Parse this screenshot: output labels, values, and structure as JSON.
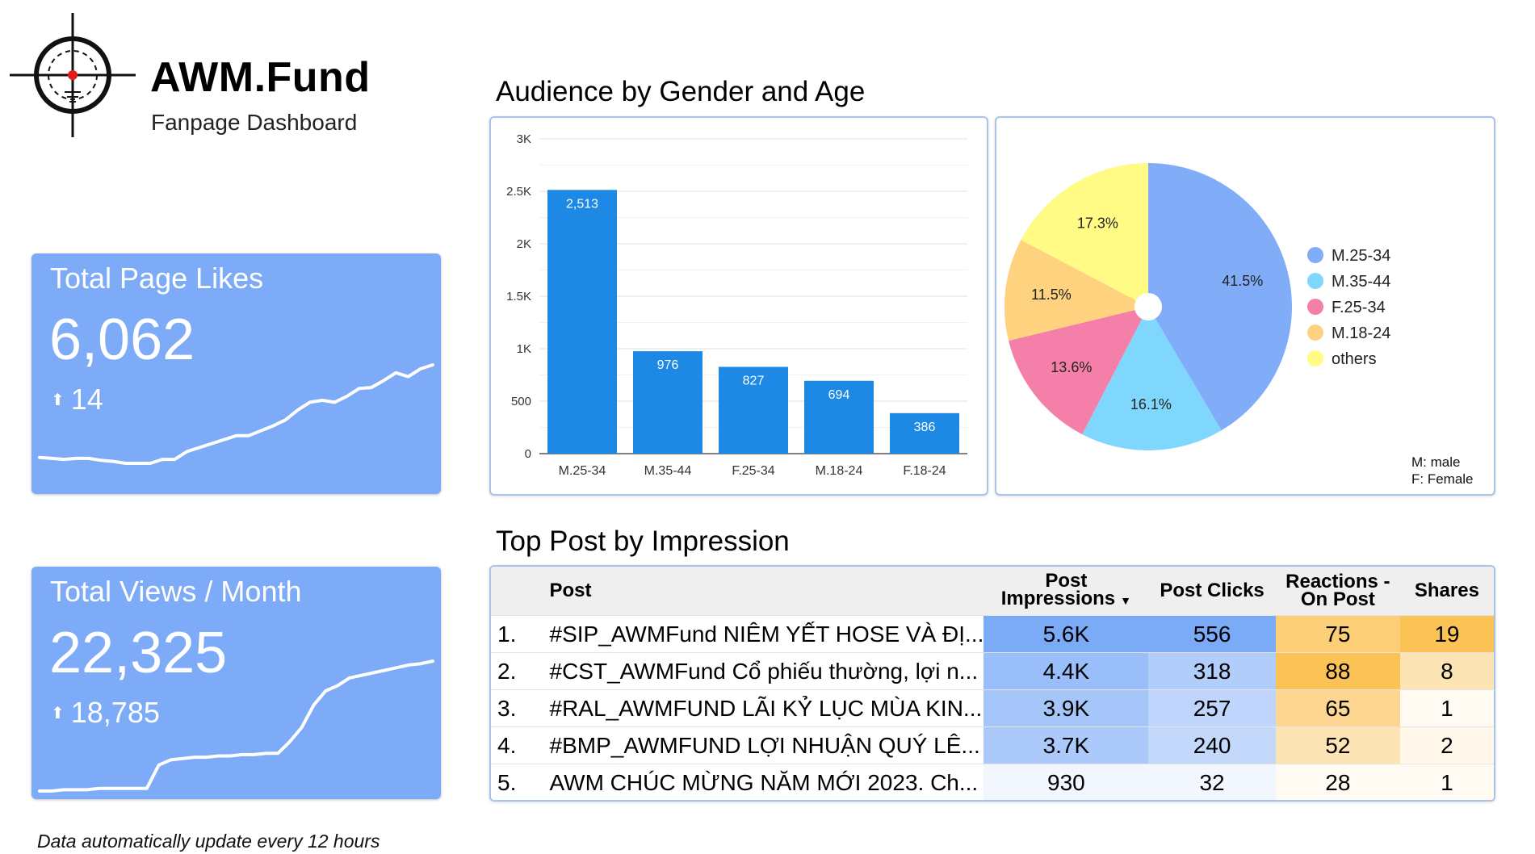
{
  "brand": {
    "title": "AWM.Fund",
    "subtitle": "Fanpage Dashboard"
  },
  "kpis": {
    "likes": {
      "title": "Total Page Likes",
      "value": "6,062",
      "delta": "14",
      "trend": [
        0.06,
        0.05,
        0.04,
        0.05,
        0.05,
        0.03,
        0.02,
        0.0,
        0.0,
        0.0,
        0.04,
        0.04,
        0.12,
        0.16,
        0.2,
        0.24,
        0.28,
        0.28,
        0.33,
        0.38,
        0.44,
        0.54,
        0.62,
        0.64,
        0.62,
        0.68,
        0.76,
        0.77,
        0.84,
        0.92,
        0.88,
        0.96,
        1.0
      ]
    },
    "views": {
      "title": "Total Views / Month",
      "value": "22,325",
      "delta": "18,785",
      "trend": [
        0.0,
        0.0,
        0.01,
        0.01,
        0.01,
        0.02,
        0.02,
        0.02,
        0.02,
        0.02,
        0.2,
        0.24,
        0.25,
        0.26,
        0.26,
        0.27,
        0.27,
        0.28,
        0.28,
        0.29,
        0.29,
        0.38,
        0.49,
        0.66,
        0.77,
        0.81,
        0.87,
        0.89,
        0.91,
        0.93,
        0.95,
        0.97,
        0.98,
        1.0
      ]
    }
  },
  "footnote": "Data automatically update every 12 hours",
  "audience_title": "Audience by Gender and Age",
  "top_post_title": "Top Post by Impression",
  "pie_note": {
    "male": "M: male",
    "female": "F: Female"
  },
  "colors": {
    "bar": "#1e88e5",
    "card": "#7dabf8",
    "pie": [
      "#80acf8",
      "#80d7fd",
      "#f47fa8",
      "#ffd280",
      "#fffb85"
    ]
  },
  "chart_data": [
    {
      "type": "bar",
      "categories": [
        "M.25-34",
        "M.35-44",
        "F.25-34",
        "M.18-24",
        "F.18-24"
      ],
      "values": [
        2513,
        976,
        827,
        694,
        386
      ],
      "data_labels": [
        "2,513",
        "976",
        "827",
        "694",
        "386"
      ],
      "ylim": [
        0,
        3000
      ],
      "yticks": [
        0,
        500,
        1000,
        1500,
        2000,
        2500,
        3000
      ],
      "ytick_labels": [
        "0",
        "500",
        "1K",
        "1.5K",
        "2K",
        "2.5K",
        "3K"
      ],
      "grid": true
    },
    {
      "type": "pie",
      "categories": [
        "M.25-34",
        "M.35-44",
        "F.25-34",
        "M.18-24",
        "others"
      ],
      "values": [
        41.5,
        16.1,
        13.6,
        11.5,
        17.3
      ],
      "data_labels": [
        "41.5%",
        "16.1%",
        "13.6%",
        "11.5%",
        "17.3%"
      ],
      "legend": "right"
    },
    {
      "type": "table",
      "columns": [
        "Post",
        "Post Impressions",
        "Post Clicks",
        "Reactions - On Post",
        "Shares"
      ],
      "rows": [
        {
          "n": "1.",
          "post": "#SIP_AWMFund NIÊM YẾT HOSE VÀ ĐỊ...",
          "impressions": "5.6K",
          "clicks": "556",
          "reactions": "75",
          "shares": "19"
        },
        {
          "n": "2.",
          "post": "#CST_AWMFund Cổ phiếu thường, lợi n...",
          "impressions": "4.4K",
          "clicks": "318",
          "reactions": "88",
          "shares": "8"
        },
        {
          "n": "3.",
          "post": "#RAL_AWMFUND LÃI KỶ LỤC MÙA KIN...",
          "impressions": "3.9K",
          "clicks": "257",
          "reactions": "65",
          "shares": "1"
        },
        {
          "n": "4.",
          "post": "#BMP_AWMFUND LỢI NHUẬN QUÝ LÊ...",
          "impressions": "3.7K",
          "clicks": "240",
          "reactions": "52",
          "shares": "2"
        },
        {
          "n": "5.",
          "post": "AWM CHÚC MỪNG NĂM MỚI 2023. Ch...",
          "impressions": "930",
          "clicks": "32",
          "reactions": "28",
          "shares": "1"
        }
      ],
      "heat": {
        "impressions": [
          5600,
          4400,
          3900,
          3700,
          930
        ],
        "clicks": [
          556,
          318,
          257,
          240,
          32
        ],
        "reactions": [
          75,
          88,
          65,
          52,
          28
        ],
        "shares": [
          19,
          8,
          1,
          2,
          1
        ]
      }
    }
  ]
}
